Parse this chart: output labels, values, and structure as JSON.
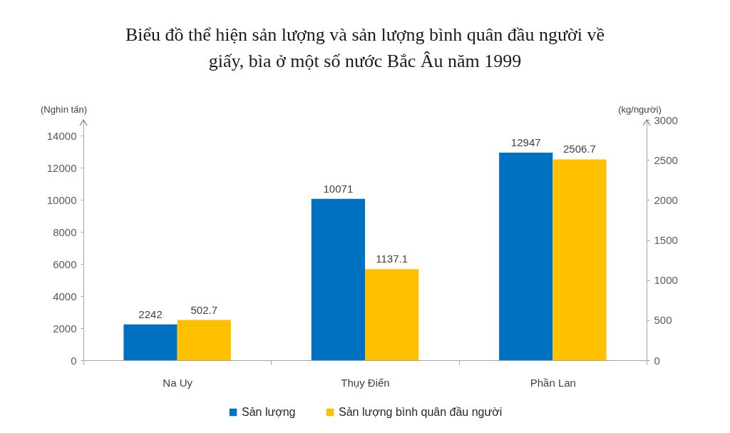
{
  "chart_data": {
    "type": "bar",
    "title": "Biểu đồ thể hiện sản lượng và sản lượng bình quân đầu người về giấy, bìa ở một số nước Bắc Âu năm 1999",
    "ylabel": "(Nghìn tấn)",
    "y2label": "(kg/người)",
    "categories": [
      "Na Uy",
      "Thụy Điển",
      "Phần Lan"
    ],
    "series": [
      {
        "name": "Sản lượng",
        "color": "#0070c0",
        "values": [
          2242,
          10071,
          12947
        ]
      },
      {
        "name": "Sản lượng bình quân đầu người",
        "color": "#ffc000",
        "values": [
          502.7,
          1137.1,
          2506.7
        ],
        "axis": "y2"
      }
    ],
    "ylim": [
      0,
      15000
    ],
    "yticks": [
      0,
      2000,
      4000,
      6000,
      8000,
      10000,
      12000,
      14000
    ],
    "y2lim": [
      0,
      3000
    ],
    "y2ticks": [
      0,
      500,
      1000,
      1500,
      2000,
      2500,
      3000
    ],
    "data_labels": true,
    "legend": "bottom",
    "grid": false
  }
}
